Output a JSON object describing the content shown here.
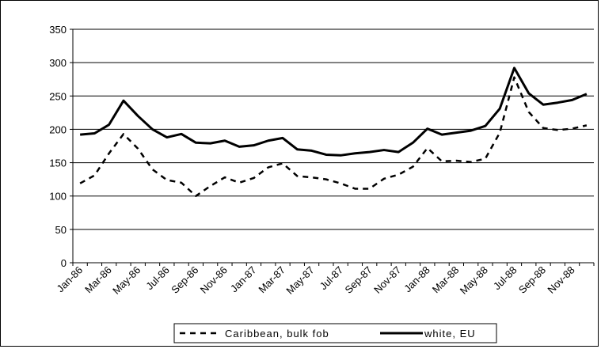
{
  "chart_data": {
    "type": "line",
    "x": [
      "Jan-86",
      "Feb-86",
      "Mar-86",
      "Apr-86",
      "May-86",
      "Jun-86",
      "Jul-86",
      "Aug-86",
      "Sep-86",
      "Oct-86",
      "Nov-86",
      "Dec-86",
      "Jan-87",
      "Feb-87",
      "Mar-87",
      "Apr-87",
      "May-87",
      "Jun-87",
      "Jul-87",
      "Aug-87",
      "Sep-87",
      "Oct-87",
      "Nov-87",
      "Dec-87",
      "Jan-88",
      "Feb-88",
      "Mar-88",
      "Apr-88",
      "May-88",
      "Jun-88",
      "Jul-88",
      "Aug-88",
      "Sep-88",
      "Oct-88",
      "Nov-88",
      "Dec-88"
    ],
    "x_tick_labels": [
      "Jan-86",
      "Mar-86",
      "May-86",
      "Jul-86",
      "Sep-86",
      "Nov-86",
      "Jan-87",
      "Mar-87",
      "May-87",
      "Jul-87",
      "Sep-87",
      "Nov-87",
      "Jan-88",
      "Mar-88",
      "May-88",
      "Jul-88",
      "Sep-88",
      "Nov-88"
    ],
    "series": [
      {
        "name": "Caribbean, bulk fob",
        "style": "dashed",
        "color": "#000000",
        "values": [
          119,
          131,
          164,
          193,
          171,
          140,
          124,
          120,
          100,
          115,
          128,
          120,
          127,
          143,
          149,
          130,
          128,
          125,
          119,
          111,
          111,
          126,
          132,
          144,
          172,
          152,
          153,
          151,
          156,
          195,
          278,
          226,
          202,
          199,
          201,
          206
        ]
      },
      {
        "name": "white, EU",
        "style": "solid",
        "color": "#000000",
        "values": [
          192,
          194,
          207,
          243,
          220,
          200,
          188,
          193,
          180,
          179,
          183,
          174,
          176,
          183,
          187,
          170,
          168,
          162,
          161,
          164,
          166,
          169,
          166,
          180,
          201,
          192,
          195,
          198,
          205,
          231,
          292,
          254,
          237,
          240,
          244,
          253
        ]
      }
    ],
    "yticks": [
      0,
      50,
      100,
      150,
      200,
      250,
      300,
      350
    ],
    "ylim": [
      0,
      350
    ],
    "grid": "horizontal",
    "legend_position": "bottom"
  }
}
